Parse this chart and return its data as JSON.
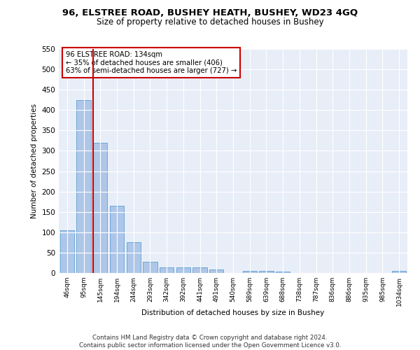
{
  "title1": "96, ELSTREE ROAD, BUSHEY HEATH, BUSHEY, WD23 4GQ",
  "title2": "Size of property relative to detached houses in Bushey",
  "xlabel": "Distribution of detached houses by size in Bushey",
  "ylabel": "Number of detached properties",
  "bin_labels": [
    "46sqm",
    "95sqm",
    "145sqm",
    "194sqm",
    "244sqm",
    "293sqm",
    "342sqm",
    "392sqm",
    "441sqm",
    "491sqm",
    "540sqm",
    "589sqm",
    "639sqm",
    "688sqm",
    "738sqm",
    "787sqm",
    "836sqm",
    "886sqm",
    "935sqm",
    "985sqm",
    "1034sqm"
  ],
  "bar_values": [
    105,
    425,
    320,
    165,
    75,
    27,
    13,
    14,
    13,
    8,
    0,
    5,
    5,
    4,
    0,
    0,
    0,
    0,
    0,
    0,
    5
  ],
  "bar_color": "#aec6e8",
  "bar_edge_color": "#5a9fd4",
  "vline_color": "#cc0000",
  "annotation_text": "96 ELSTREE ROAD: 134sqm\n← 35% of detached houses are smaller (406)\n63% of semi-detached houses are larger (727) →",
  "annotation_box_color": "#ffffff",
  "annotation_box_edge": "#cc0000",
  "ylim": [
    0,
    550
  ],
  "yticks": [
    0,
    50,
    100,
    150,
    200,
    250,
    300,
    350,
    400,
    450,
    500,
    550
  ],
  "footer": "Contains HM Land Registry data © Crown copyright and database right 2024.\nContains public sector information licensed under the Open Government Licence v3.0.",
  "plot_bg": "#e8eef8"
}
